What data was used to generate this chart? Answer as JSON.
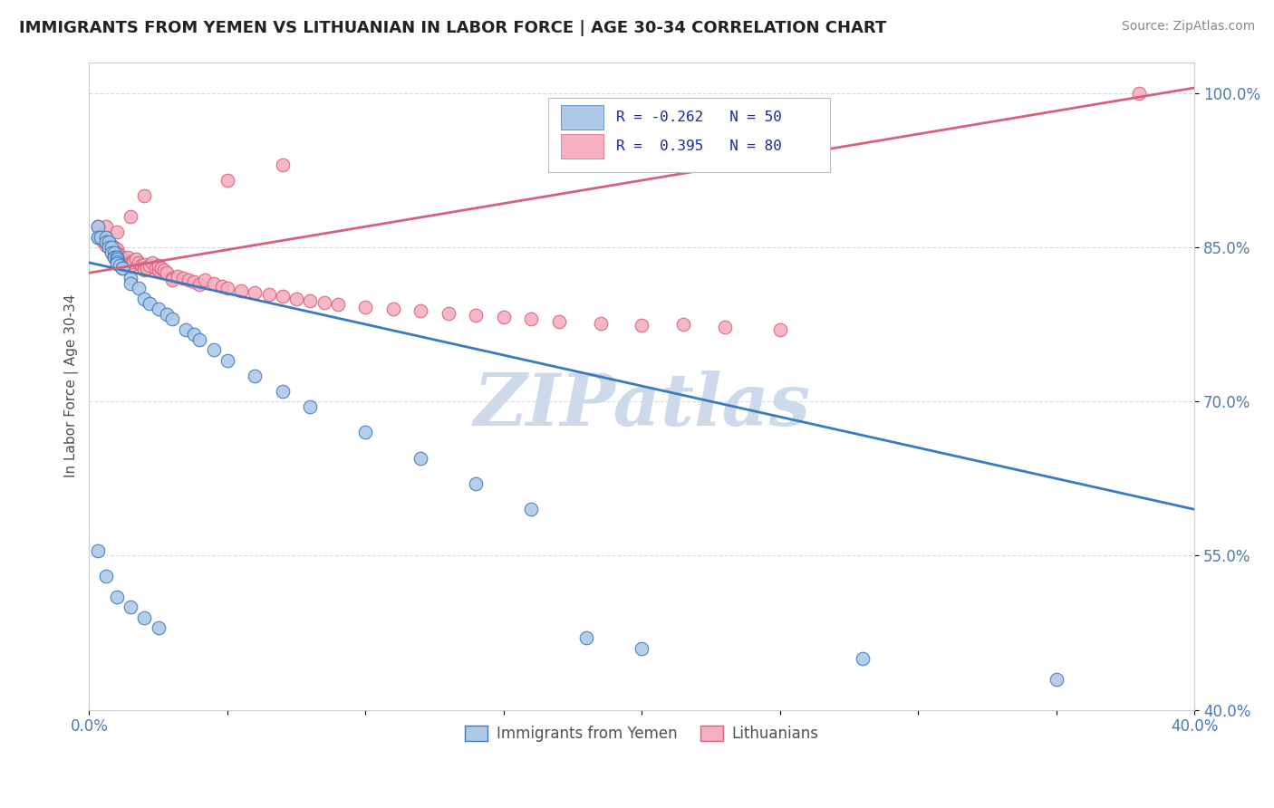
{
  "title": "IMMIGRANTS FROM YEMEN VS LITHUANIAN IN LABOR FORCE | AGE 30-34 CORRELATION CHART",
  "source": "Source: ZipAtlas.com",
  "ylabel": "In Labor Force | Age 30-34",
  "xlim": [
    0.0,
    0.4
  ],
  "ylim": [
    0.4,
    1.03
  ],
  "x_ticks": [
    0.0,
    0.05,
    0.1,
    0.15,
    0.2,
    0.25,
    0.3,
    0.35,
    0.4
  ],
  "y_ticks": [
    0.4,
    0.55,
    0.7,
    0.85,
    1.0
  ],
  "y_tick_labels": [
    "40.0%",
    "55.0%",
    "70.0%",
    "85.0%",
    "100.0%"
  ],
  "legend_labels": [
    "Immigrants from Yemen",
    "Lithuanians"
  ],
  "R_yemen": -0.262,
  "N_yemen": 50,
  "R_lith": 0.395,
  "N_lith": 80,
  "color_yemen": "#adc9e8",
  "color_lith": "#f5afc0",
  "line_color_yemen": "#3a7abf",
  "line_color_lith": "#d9607a",
  "watermark": "ZIPatlas",
  "watermark_color": "#ccdaec",
  "yemen_line_x0": 0.0,
  "yemen_line_y0": 0.835,
  "yemen_line_x1": 0.35,
  "yemen_line_y1": 0.625,
  "lith_line_x0": 0.0,
  "lith_line_y0": 0.825,
  "lith_line_x1": 0.4,
  "lith_line_y1": 1.005,
  "yemen_x": [
    0.003,
    0.003,
    0.004,
    0.006,
    0.006,
    0.007,
    0.007,
    0.008,
    0.008,
    0.009,
    0.009,
    0.009,
    0.01,
    0.01,
    0.01,
    0.01,
    0.01,
    0.011,
    0.012,
    0.012,
    0.015,
    0.015,
    0.018,
    0.02,
    0.022,
    0.025,
    0.028,
    0.03,
    0.035,
    0.038,
    0.04,
    0.045,
    0.05,
    0.06,
    0.07,
    0.08,
    0.1,
    0.12,
    0.14,
    0.16,
    0.003,
    0.006,
    0.01,
    0.015,
    0.02,
    0.025,
    0.18,
    0.2,
    0.28,
    0.35
  ],
  "yemen_y": [
    0.87,
    0.86,
    0.86,
    0.86,
    0.855,
    0.855,
    0.85,
    0.85,
    0.845,
    0.845,
    0.84,
    0.84,
    0.84,
    0.84,
    0.838,
    0.836,
    0.834,
    0.832,
    0.83,
    0.83,
    0.82,
    0.815,
    0.81,
    0.8,
    0.795,
    0.79,
    0.785,
    0.78,
    0.77,
    0.765,
    0.76,
    0.75,
    0.74,
    0.725,
    0.71,
    0.695,
    0.67,
    0.645,
    0.62,
    0.595,
    0.555,
    0.53,
    0.51,
    0.5,
    0.49,
    0.48,
    0.47,
    0.46,
    0.45,
    0.43
  ],
  "lith_x": [
    0.003,
    0.003,
    0.004,
    0.005,
    0.005,
    0.006,
    0.006,
    0.007,
    0.007,
    0.008,
    0.008,
    0.009,
    0.009,
    0.01,
    0.01,
    0.01,
    0.01,
    0.011,
    0.012,
    0.012,
    0.013,
    0.014,
    0.015,
    0.015,
    0.015,
    0.016,
    0.017,
    0.018,
    0.019,
    0.02,
    0.02,
    0.02,
    0.021,
    0.022,
    0.023,
    0.024,
    0.025,
    0.025,
    0.026,
    0.027,
    0.028,
    0.03,
    0.03,
    0.032,
    0.034,
    0.036,
    0.038,
    0.04,
    0.042,
    0.045,
    0.048,
    0.05,
    0.055,
    0.06,
    0.065,
    0.07,
    0.075,
    0.08,
    0.085,
    0.09,
    0.1,
    0.11,
    0.12,
    0.13,
    0.14,
    0.15,
    0.16,
    0.17,
    0.185,
    0.2,
    0.215,
    0.23,
    0.25,
    0.006,
    0.01,
    0.015,
    0.02,
    0.05,
    0.07,
    0.38
  ],
  "lith_y": [
    0.87,
    0.86,
    0.862,
    0.858,
    0.855,
    0.856,
    0.852,
    0.854,
    0.85,
    0.852,
    0.848,
    0.85,
    0.846,
    0.848,
    0.845,
    0.843,
    0.84,
    0.842,
    0.84,
    0.838,
    0.838,
    0.84,
    0.836,
    0.834,
    0.832,
    0.836,
    0.838,
    0.835,
    0.832,
    0.833,
    0.83,
    0.828,
    0.83,
    0.832,
    0.835,
    0.83,
    0.828,
    0.832,
    0.83,
    0.828,
    0.825,
    0.82,
    0.818,
    0.822,
    0.82,
    0.818,
    0.816,
    0.814,
    0.818,
    0.815,
    0.812,
    0.81,
    0.808,
    0.806,
    0.804,
    0.802,
    0.8,
    0.798,
    0.796,
    0.794,
    0.792,
    0.79,
    0.788,
    0.786,
    0.784,
    0.782,
    0.78,
    0.778,
    0.776,
    0.774,
    0.775,
    0.772,
    0.77,
    0.87,
    0.865,
    0.88,
    0.9,
    0.915,
    0.93,
    1.0
  ]
}
